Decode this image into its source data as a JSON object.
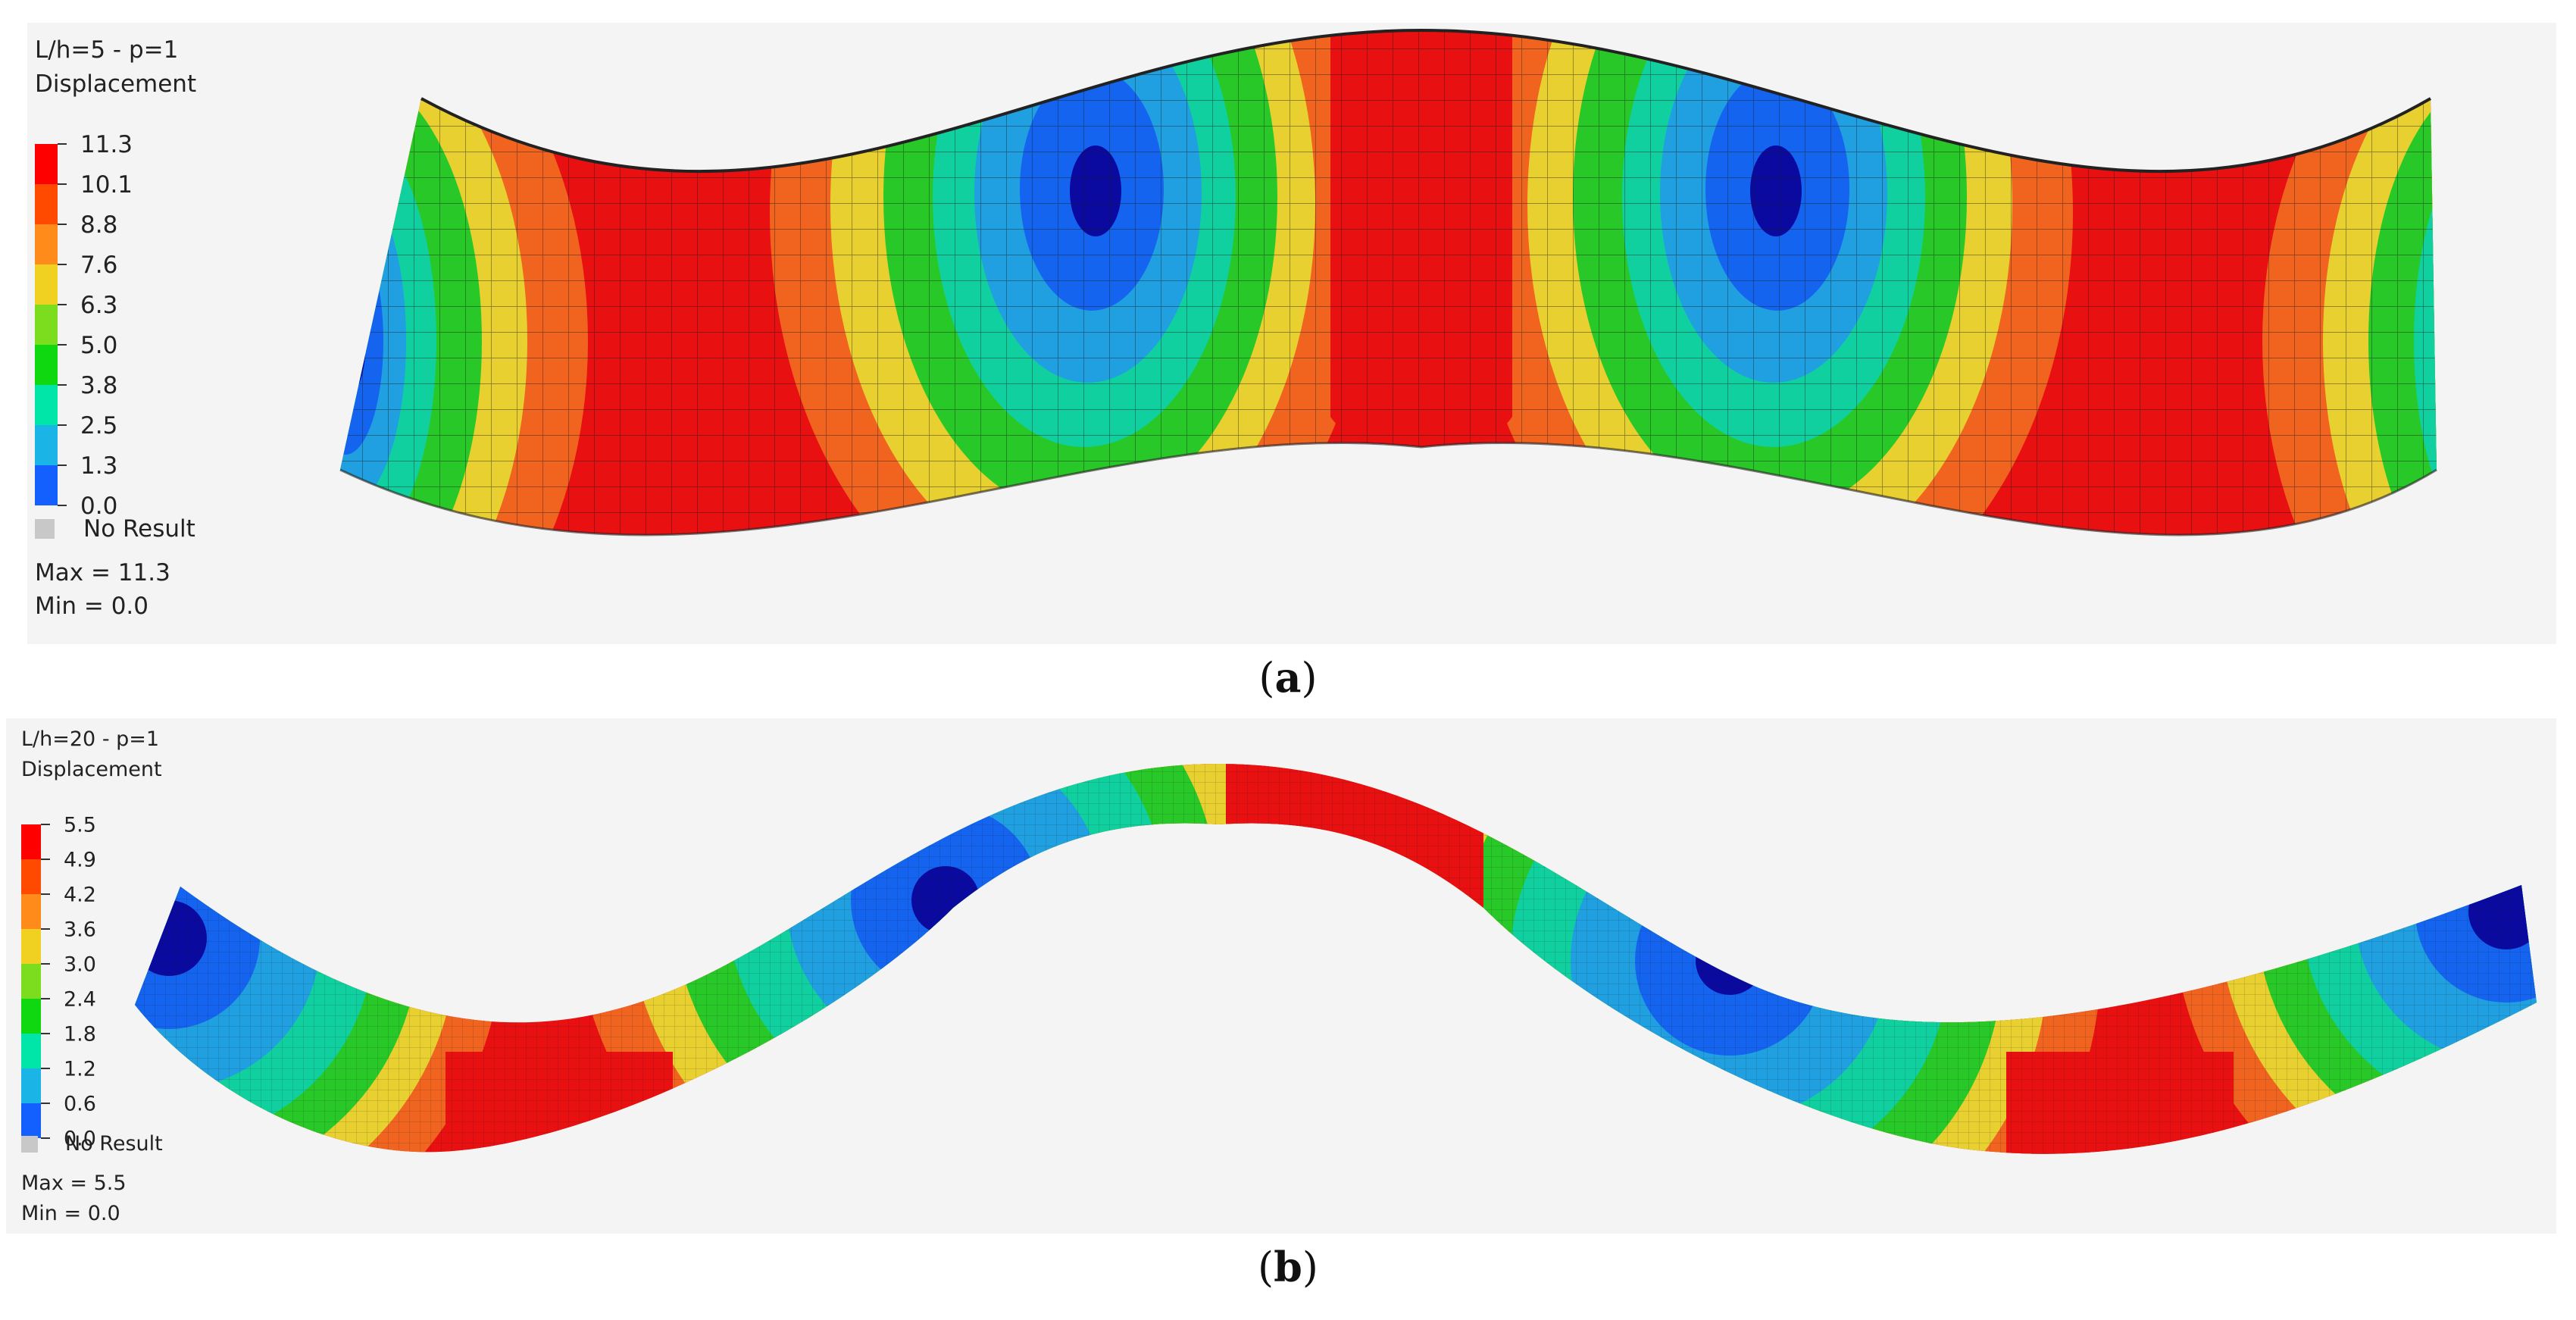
{
  "panel_a": {
    "header": "L/h=5  -  p=1",
    "quantity": "Displacement",
    "legend_values": [
      "11.3",
      "10.1",
      "8.8",
      "7.6",
      "6.3",
      "5.0",
      "3.8",
      "2.5",
      "1.3",
      "0.0"
    ],
    "legend_colors": [
      "#ff0000",
      "#ff4a00",
      "#ff8c1a",
      "#f0d020",
      "#7cdc1e",
      "#10d810",
      "#00e6a8",
      "#1ab4e6",
      "#1460ff",
      "#0000b4"
    ],
    "no_result": "No Result",
    "max": "Max = 11.3",
    "min": "Min = 0.0",
    "caption_open": "(",
    "caption_letter": "a",
    "caption_close": ")"
  },
  "panel_b": {
    "header": "L/h=20  -  p=1",
    "quantity": "Displacement",
    "legend_values": [
      "5.5",
      "4.9",
      "4.2",
      "3.6",
      "3.0",
      "2.4",
      "1.8",
      "1.2",
      "0.6",
      "0.0"
    ],
    "legend_colors": [
      "#ff0000",
      "#ff4a00",
      "#ff8c1a",
      "#f0d020",
      "#7cdc1e",
      "#10d810",
      "#00e6a8",
      "#1ab4e6",
      "#1460ff",
      "#0000b4"
    ],
    "no_result": "No Result",
    "max": "Max = 5.5",
    "min": "Min = 0.0",
    "caption_open": "(",
    "caption_letter": "b",
    "caption_close": ")"
  },
  "contour_colors": {
    "max": "#e81010",
    "high": "#f06420",
    "mid_high": "#e8d030",
    "mid": "#28c828",
    "mid_low": "#10d0a0",
    "low": "#20a0e0",
    "lower": "#1464f0",
    "min": "#0a0aa0",
    "mesh_line": "#1a1a1a"
  }
}
